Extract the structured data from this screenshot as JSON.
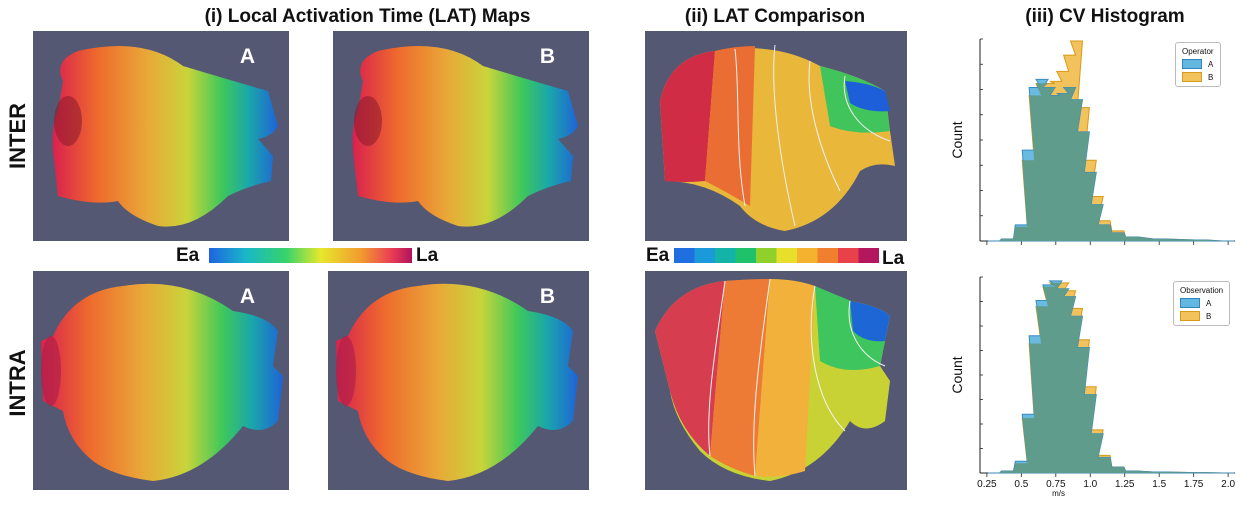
{
  "titles": {
    "lat_maps": "(i) Local Activation Time (LAT) Maps",
    "lat_comparison": "(ii) LAT Comparison",
    "cv_histogram": "(iii) CV Histogram"
  },
  "rows": {
    "inter": "INTER",
    "intra": "INTRA"
  },
  "panels": {
    "a": "A",
    "b": "B"
  },
  "colorbars": {
    "continuous": {
      "start": "Ea",
      "end": "La"
    },
    "discrete": {
      "start": "Ea",
      "end": "La",
      "colors": [
        "#1f6fe0",
        "#1a9ad8",
        "#14b3a8",
        "#1fc26a",
        "#8fd12a",
        "#e7df2a",
        "#f4b22e",
        "#f07f2e",
        "#e8414a",
        "#b5175e"
      ]
    }
  },
  "colors": {
    "panel_bg": "#545872",
    "operator_a": "#63b7e0",
    "operator_b": "#f2c25c",
    "overlap": "#5f9c8c"
  },
  "chart_data": [
    {
      "type": "histogram",
      "legend_title": "Operator",
      "ylabel": "Count",
      "xlim": [
        0.2,
        2.05
      ],
      "legend_position": "top-right",
      "series": [
        {
          "name": "A",
          "x": [
            0.3,
            0.4,
            0.5,
            0.55,
            0.6,
            0.65,
            0.7,
            0.75,
            0.8,
            0.85,
            0.9,
            0.95,
            1.0,
            1.05,
            1.1,
            1.2,
            1.3,
            1.5,
            1.8,
            2.0
          ],
          "values": [
            0.0,
            0.01,
            0.08,
            0.45,
            0.76,
            0.8,
            0.76,
            0.72,
            0.73,
            0.76,
            0.7,
            0.54,
            0.34,
            0.18,
            0.08,
            0.04,
            0.02,
            0.01,
            0.005,
            0.0
          ]
        },
        {
          "name": "B",
          "x": [
            0.3,
            0.4,
            0.5,
            0.55,
            0.6,
            0.65,
            0.7,
            0.75,
            0.8,
            0.85,
            0.9,
            0.95,
            1.0,
            1.05,
            1.1,
            1.2,
            1.3,
            1.5,
            1.8,
            2.0
          ],
          "values": [
            0.0,
            0.01,
            0.07,
            0.4,
            0.72,
            0.78,
            0.78,
            0.79,
            0.84,
            0.92,
            0.99,
            0.66,
            0.4,
            0.22,
            0.1,
            0.05,
            0.02,
            0.01,
            0.005,
            0.0
          ]
        }
      ]
    },
    {
      "type": "histogram",
      "legend_title": "Observation",
      "xlabel": "m/s",
      "ylabel": "Count",
      "xlim": [
        0.2,
        2.05
      ],
      "xticks": [
        "0.25",
        "0.5",
        "0.75",
        "1.0",
        "1.25",
        "1.5",
        "1.75",
        "2.0"
      ],
      "legend_position": "top-right",
      "series": [
        {
          "name": "A",
          "x": [
            0.3,
            0.4,
            0.5,
            0.55,
            0.6,
            0.65,
            0.7,
            0.75,
            0.8,
            0.85,
            0.9,
            0.95,
            1.0,
            1.05,
            1.1,
            1.2,
            1.3,
            1.5,
            1.8,
            2.0
          ],
          "values": [
            0.0,
            0.01,
            0.06,
            0.3,
            0.7,
            0.88,
            0.96,
            0.98,
            0.94,
            0.9,
            0.8,
            0.64,
            0.4,
            0.2,
            0.08,
            0.03,
            0.01,
            0.005,
            0.002,
            0.0
          ]
        },
        {
          "name": "B",
          "x": [
            0.3,
            0.4,
            0.5,
            0.55,
            0.6,
            0.65,
            0.7,
            0.75,
            0.8,
            0.85,
            0.9,
            0.95,
            1.0,
            1.05,
            1.1,
            1.2,
            1.3,
            1.5,
            1.8,
            2.0
          ],
          "values": [
            0.0,
            0.01,
            0.05,
            0.28,
            0.66,
            0.85,
            0.95,
            0.97,
            0.97,
            0.93,
            0.84,
            0.68,
            0.44,
            0.22,
            0.09,
            0.03,
            0.01,
            0.005,
            0.002,
            0.0
          ]
        }
      ]
    }
  ]
}
